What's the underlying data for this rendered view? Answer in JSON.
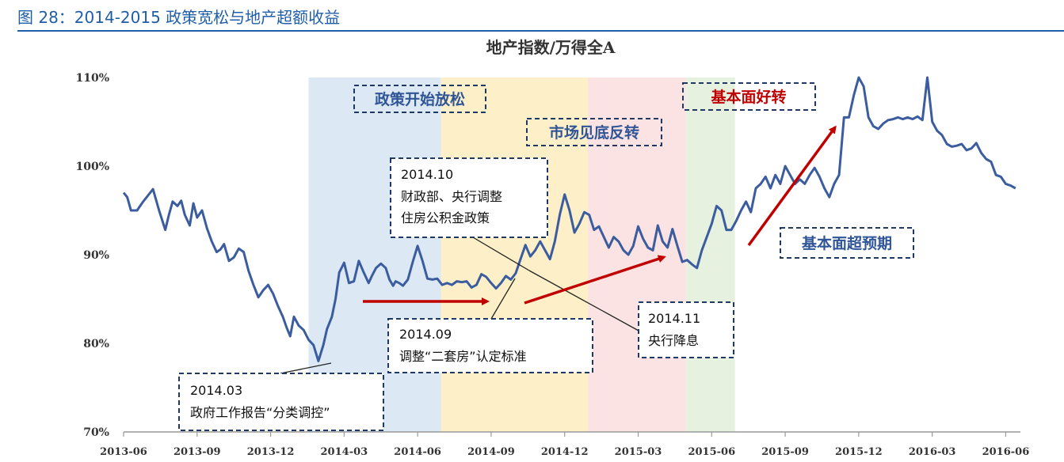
{
  "figure": {
    "title": "图 28：2014-2015 政策宽松与地产超额收益"
  },
  "colors": {
    "header": "#1f5ea8",
    "line": "#3b5c9e",
    "arrow": "#c00000",
    "box_border": "#1f3864",
    "phase_1": "#dce9f5",
    "phase_2": "#fdf0c8",
    "phase_3": "#fbe3e3",
    "phase_4": "#e6f1e0"
  },
  "chart_data": {
    "type": "line",
    "title": "地产指数/万得全A",
    "xlabel": "",
    "ylabel": "",
    "ylim": [
      0.7,
      1.1
    ],
    "yticks": [
      "70%",
      "80%",
      "90%",
      "100%",
      "110%"
    ],
    "xticks": [
      "2013-06",
      "2013-09",
      "2013-12",
      "2014-03",
      "2014-06",
      "2014-09",
      "2014-12",
      "2015-03",
      "2015-06",
      "2015-09",
      "2015-12",
      "2016-03",
      "2016-06"
    ],
    "xlim": [
      0,
      36.6
    ],
    "grid": false,
    "series": [
      {
        "name": "",
        "x": [
          0,
          0.15,
          0.3,
          0.55,
          0.8,
          1.0,
          1.2,
          1.45,
          1.7,
          1.85,
          2.0,
          2.2,
          2.35,
          2.5,
          2.7,
          2.85,
          3.0,
          3.2,
          3.4,
          3.6,
          3.8,
          3.95,
          4.1,
          4.3,
          4.5,
          4.7,
          4.9,
          5.1,
          5.3,
          5.5,
          5.7,
          5.9,
          6.1,
          6.3,
          6.5,
          6.65,
          6.8,
          6.95,
          7.15,
          7.35,
          7.55,
          7.75,
          7.95,
          8.15,
          8.3,
          8.5,
          8.65,
          8.8,
          9.0,
          9.2,
          9.4,
          9.6,
          9.8,
          10.0,
          10.15,
          10.3,
          10.5,
          10.7,
          10.85,
          11.0,
          11.1,
          11.25,
          11.4,
          11.6,
          11.8,
          12.0,
          12.2,
          12.4,
          12.6,
          12.8,
          13.0,
          13.2,
          13.4,
          13.6,
          13.8,
          14.0,
          14.2,
          14.4,
          14.6,
          14.8,
          15.0,
          15.2,
          15.4,
          15.6,
          15.8,
          16.0,
          16.2,
          16.4,
          16.6,
          16.8,
          17.0,
          17.2,
          17.4,
          17.6,
          17.8,
          18.0,
          18.2,
          18.4,
          18.6,
          18.8,
          19.0,
          19.2,
          19.4,
          19.6,
          19.8,
          20.0,
          20.2,
          20.4,
          20.6,
          20.8,
          21.0,
          21.2,
          21.4,
          21.6,
          21.8,
          22.0,
          22.2,
          22.4,
          22.6,
          22.8,
          23.0,
          23.2,
          23.4,
          23.6,
          23.8,
          24.0,
          24.2,
          24.4,
          24.6,
          24.8,
          25.0,
          25.2,
          25.4,
          25.6,
          25.8,
          26.0,
          26.2,
          26.4,
          26.6,
          26.8,
          27.0,
          27.2,
          27.4,
          27.6,
          27.8,
          28.0,
          28.2,
          28.4,
          28.6,
          28.8,
          29.0,
          29.2,
          29.4,
          29.6,
          29.8,
          30.0,
          30.2,
          30.4,
          30.6,
          30.8,
          31.0,
          31.2,
          31.4,
          31.6,
          31.8,
          32.0,
          32.2,
          32.4,
          32.6,
          32.8,
          33.0,
          33.2,
          33.4,
          33.6,
          33.8,
          34.0,
          34.2,
          34.4,
          34.6,
          34.8,
          35.0,
          35.2,
          35.4,
          35.6,
          35.8,
          36.0,
          36.2,
          36.4
        ],
        "y": [
          0.97,
          0.965,
          0.95,
          0.95,
          0.96,
          0.967,
          0.974,
          0.95,
          0.928,
          0.945,
          0.96,
          0.955,
          0.961,
          0.945,
          0.933,
          0.958,
          0.942,
          0.95,
          0.93,
          0.915,
          0.903,
          0.906,
          0.912,
          0.893,
          0.897,
          0.907,
          0.903,
          0.882,
          0.866,
          0.852,
          0.86,
          0.866,
          0.856,
          0.842,
          0.83,
          0.818,
          0.808,
          0.83,
          0.82,
          0.815,
          0.804,
          0.798,
          0.78,
          0.798,
          0.816,
          0.83,
          0.85,
          0.88,
          0.891,
          0.868,
          0.87,
          0.893,
          0.88,
          0.868,
          0.877,
          0.885,
          0.89,
          0.885,
          0.872,
          0.865,
          0.87,
          0.868,
          0.865,
          0.872,
          0.892,
          0.91,
          0.893,
          0.873,
          0.872,
          0.873,
          0.866,
          0.868,
          0.866,
          0.87,
          0.869,
          0.87,
          0.863,
          0.866,
          0.878,
          0.875,
          0.868,
          0.862,
          0.868,
          0.876,
          0.872,
          0.879,
          0.895,
          0.911,
          0.898,
          0.905,
          0.915,
          0.905,
          0.895,
          0.915,
          0.945,
          0.968,
          0.95,
          0.925,
          0.935,
          0.948,
          0.945,
          0.928,
          0.932,
          0.92,
          0.908,
          0.92,
          0.915,
          0.905,
          0.9,
          0.91,
          0.932,
          0.918,
          0.908,
          0.905,
          0.933,
          0.915,
          0.908,
          0.929,
          0.91,
          0.892,
          0.894,
          0.889,
          0.885,
          0.905,
          0.92,
          0.935,
          0.955,
          0.95,
          0.928,
          0.928,
          0.938,
          0.95,
          0.96,
          0.948,
          0.975,
          0.98,
          0.988,
          0.975,
          0.99,
          0.98,
          1.0,
          0.99,
          0.98,
          0.985,
          0.98,
          0.99,
          0.998,
          0.988,
          0.975,
          0.965,
          0.98,
          0.99,
          1.055,
          1.055,
          1.08,
          1.1,
          1.09,
          1.055,
          1.045,
          1.042,
          1.048,
          1.052,
          1.053,
          1.055,
          1.053,
          1.055,
          1.053,
          1.056,
          1.052,
          1.1,
          1.05,
          1.04,
          1.035,
          1.025,
          1.022,
          1.023,
          1.025,
          1.018,
          1.02,
          1.026,
          1.015,
          1.008,
          1.005,
          0.99,
          0.988,
          0.98,
          0.978,
          0.975
        ]
      }
    ],
    "phases": [
      {
        "label": "政策开始放松",
        "x0": 7.55,
        "x1": 12.95
      },
      {
        "label": "市场见底反转",
        "x0": 12.95,
        "x1": 18.95
      },
      {
        "label": "基本面好转",
        "x0": 18.95,
        "x1": 22.95
      },
      {
        "label": "",
        "x0": 22.95,
        "x1": 24.95
      }
    ],
    "annotations": [
      {
        "lines": [
          "2014.03",
          "政府工作报告“分类调控”"
        ]
      },
      {
        "lines": [
          "2014.10",
          "财政部、央行调整",
          "住房公积金政策"
        ]
      },
      {
        "lines": [
          "2014.09",
          "调整“二套房”认定标准"
        ]
      },
      {
        "lines": [
          "2014.11",
          "央行降息"
        ]
      },
      {
        "lines": [
          "基本面超预期"
        ]
      }
    ]
  }
}
